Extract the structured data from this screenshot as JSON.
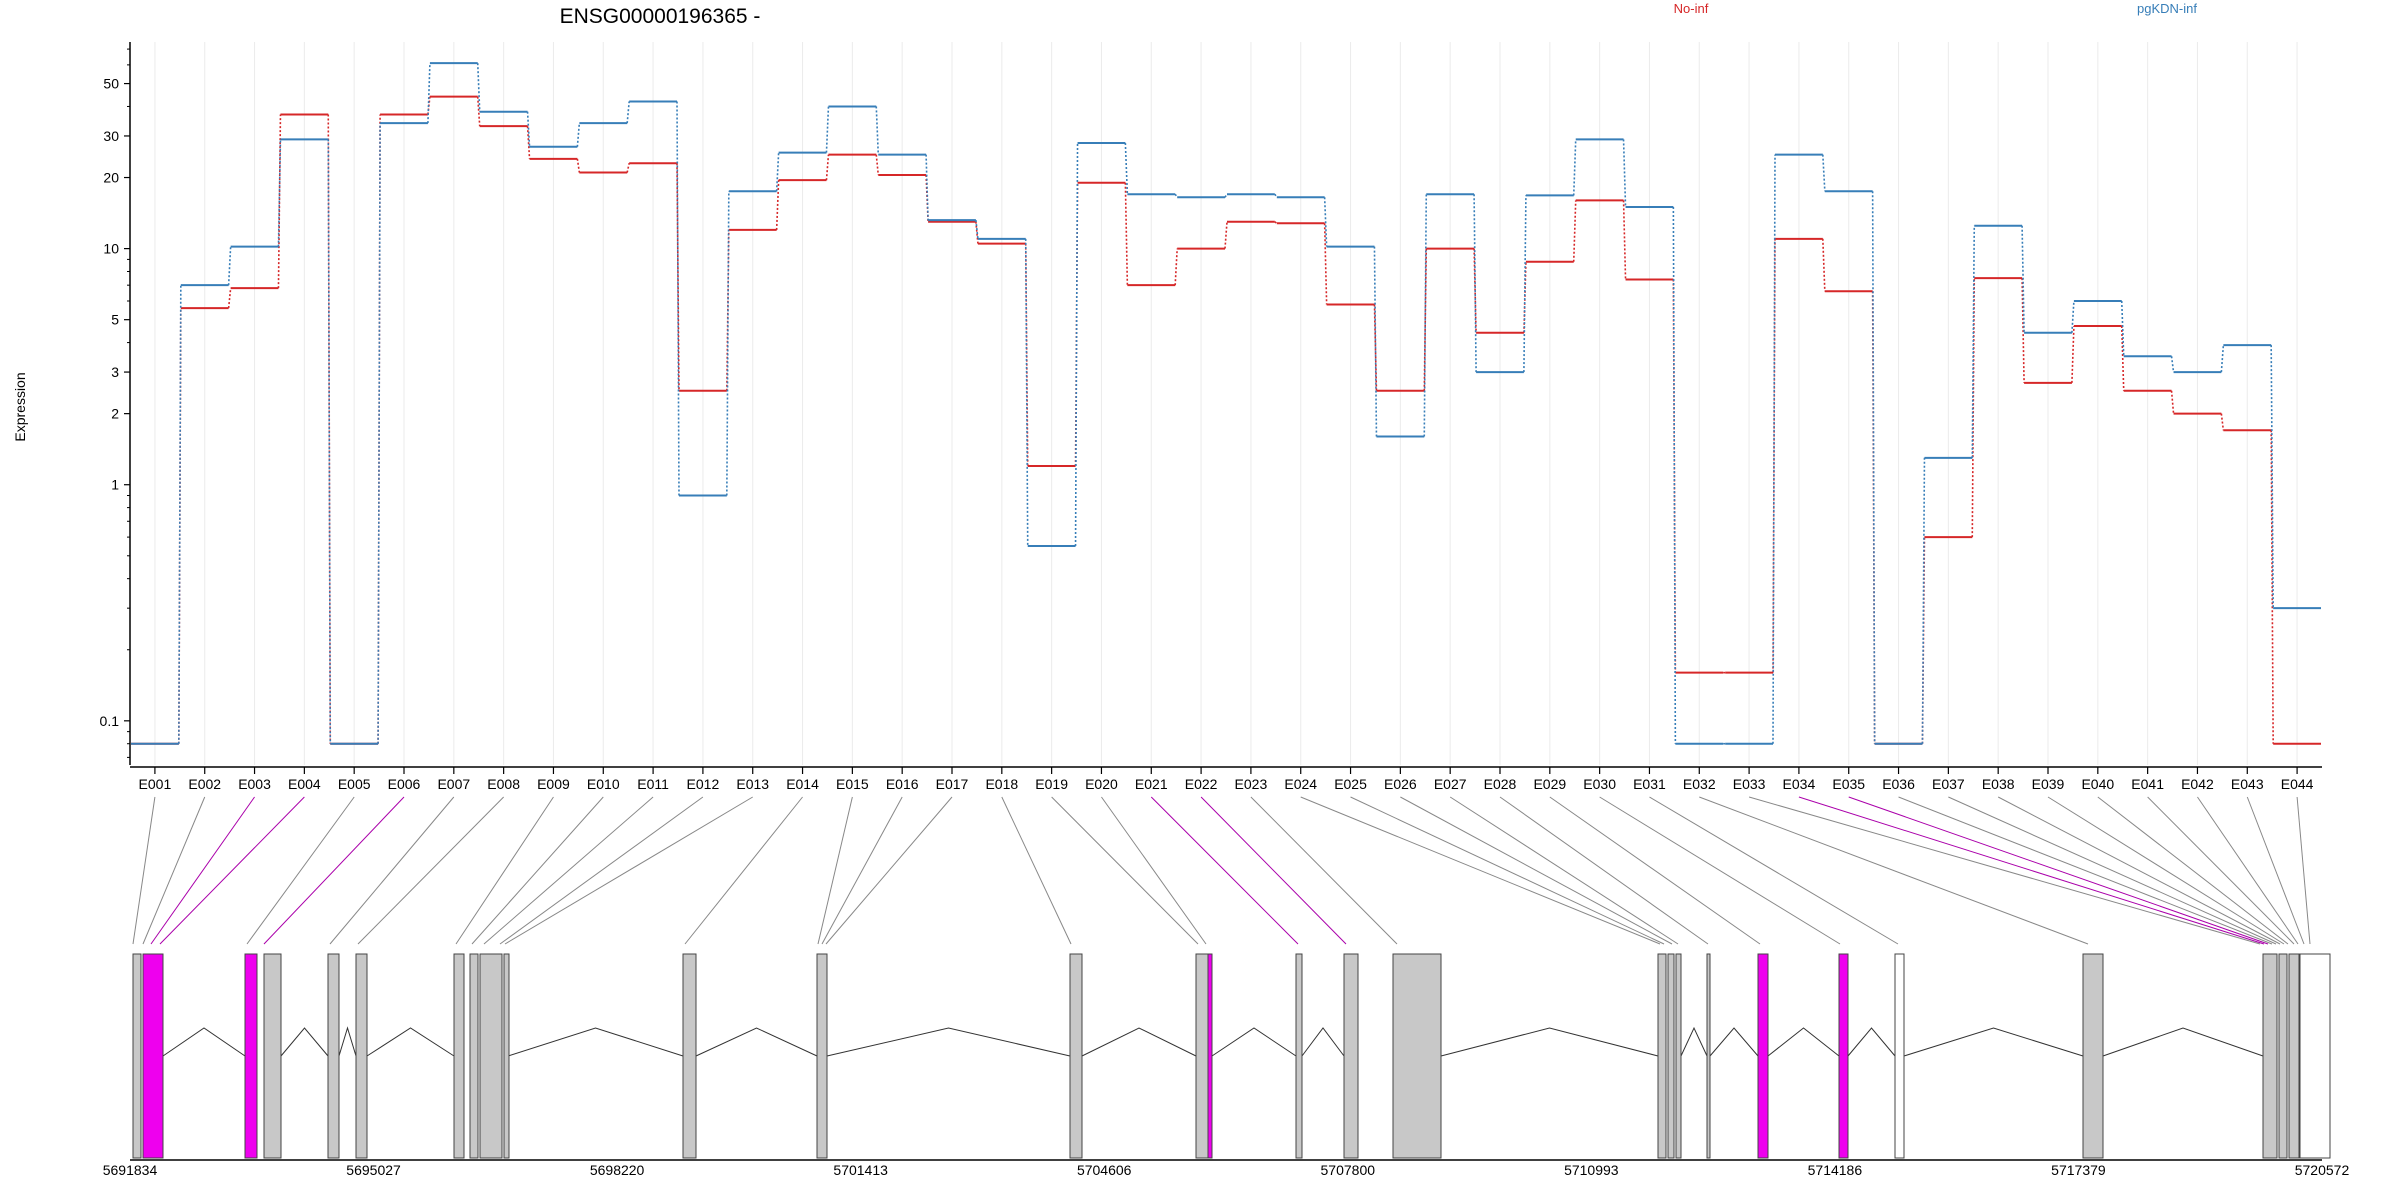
{
  "chart_data": {
    "type": "line",
    "title": "ENSG00000196365 -",
    "xlabel": "",
    "ylabel": "Expression",
    "y_scale": "log",
    "ylim": [
      0.065,
      75
    ],
    "y_ticks": [
      0.1,
      1,
      2,
      3,
      5,
      10,
      20,
      30,
      50
    ],
    "y_tick_labels": [
      "0.1",
      "1",
      "2",
      "3",
      "5",
      "10",
      "20",
      "30",
      "50"
    ],
    "grid": "vertical light gridlines at each exon",
    "legend_placement": "top",
    "categories": [
      "E001",
      "E002",
      "E003",
      "E004",
      "E005",
      "E006",
      "E007",
      "E008",
      "E009",
      "E010",
      "E011",
      "E012",
      "E013",
      "E014",
      "E015",
      "E016",
      "E017",
      "E018",
      "E019",
      "E020",
      "E021",
      "E022",
      "E023",
      "E024",
      "E025",
      "E026",
      "E027",
      "E028",
      "E029",
      "E030",
      "E031",
      "E032",
      "E033",
      "E034",
      "E035",
      "E036",
      "E037",
      "E038",
      "E039",
      "E040",
      "E041",
      "E042",
      "E043",
      "E044"
    ],
    "series": [
      {
        "name": "No-inf",
        "color": "#d62728",
        "values": [
          0.08,
          5.6,
          6.8,
          37,
          0.08,
          37,
          44,
          33,
          24,
          21,
          23,
          2.5,
          12,
          19.5,
          25,
          20.5,
          13,
          10.5,
          1.2,
          19,
          7,
          10,
          13,
          12.8,
          5.8,
          2.5,
          10,
          4.4,
          8.8,
          16,
          7.4,
          0.16,
          0.16,
          11,
          6.6,
          0.08,
          0.6,
          7.5,
          2.7,
          4.7,
          2.5,
          2,
          1.7,
          0.08
        ]
      },
      {
        "name": "pgKDN-inf",
        "color": "#377eb8",
        "values": [
          0.08,
          7,
          10.2,
          29,
          0.08,
          34,
          61,
          38,
          27,
          34,
          42,
          0.9,
          17.5,
          25.5,
          40,
          25,
          13.2,
          11,
          0.55,
          28,
          17,
          16.5,
          17,
          16.5,
          10.2,
          1.6,
          17,
          3.0,
          16.8,
          29,
          15,
          0.08,
          0.08,
          25,
          17.5,
          0.08,
          1.3,
          12.5,
          4.4,
          6.0,
          3.5,
          3.0,
          3.9,
          0.3
        ]
      }
    ],
    "gene_track": {
      "coordinate_labels": [
        "5691834",
        "5695027",
        "5698220",
        "5701413",
        "5704606",
        "5707800",
        "5710993",
        "5714186",
        "5717379",
        "5720572"
      ],
      "highlighted_exons": [
        "E003",
        "E004",
        "E006",
        "E021",
        "E022",
        "E034",
        "E035"
      ],
      "highlight_color": "#ee00ee",
      "exon_color": "#c8c8c8"
    }
  }
}
